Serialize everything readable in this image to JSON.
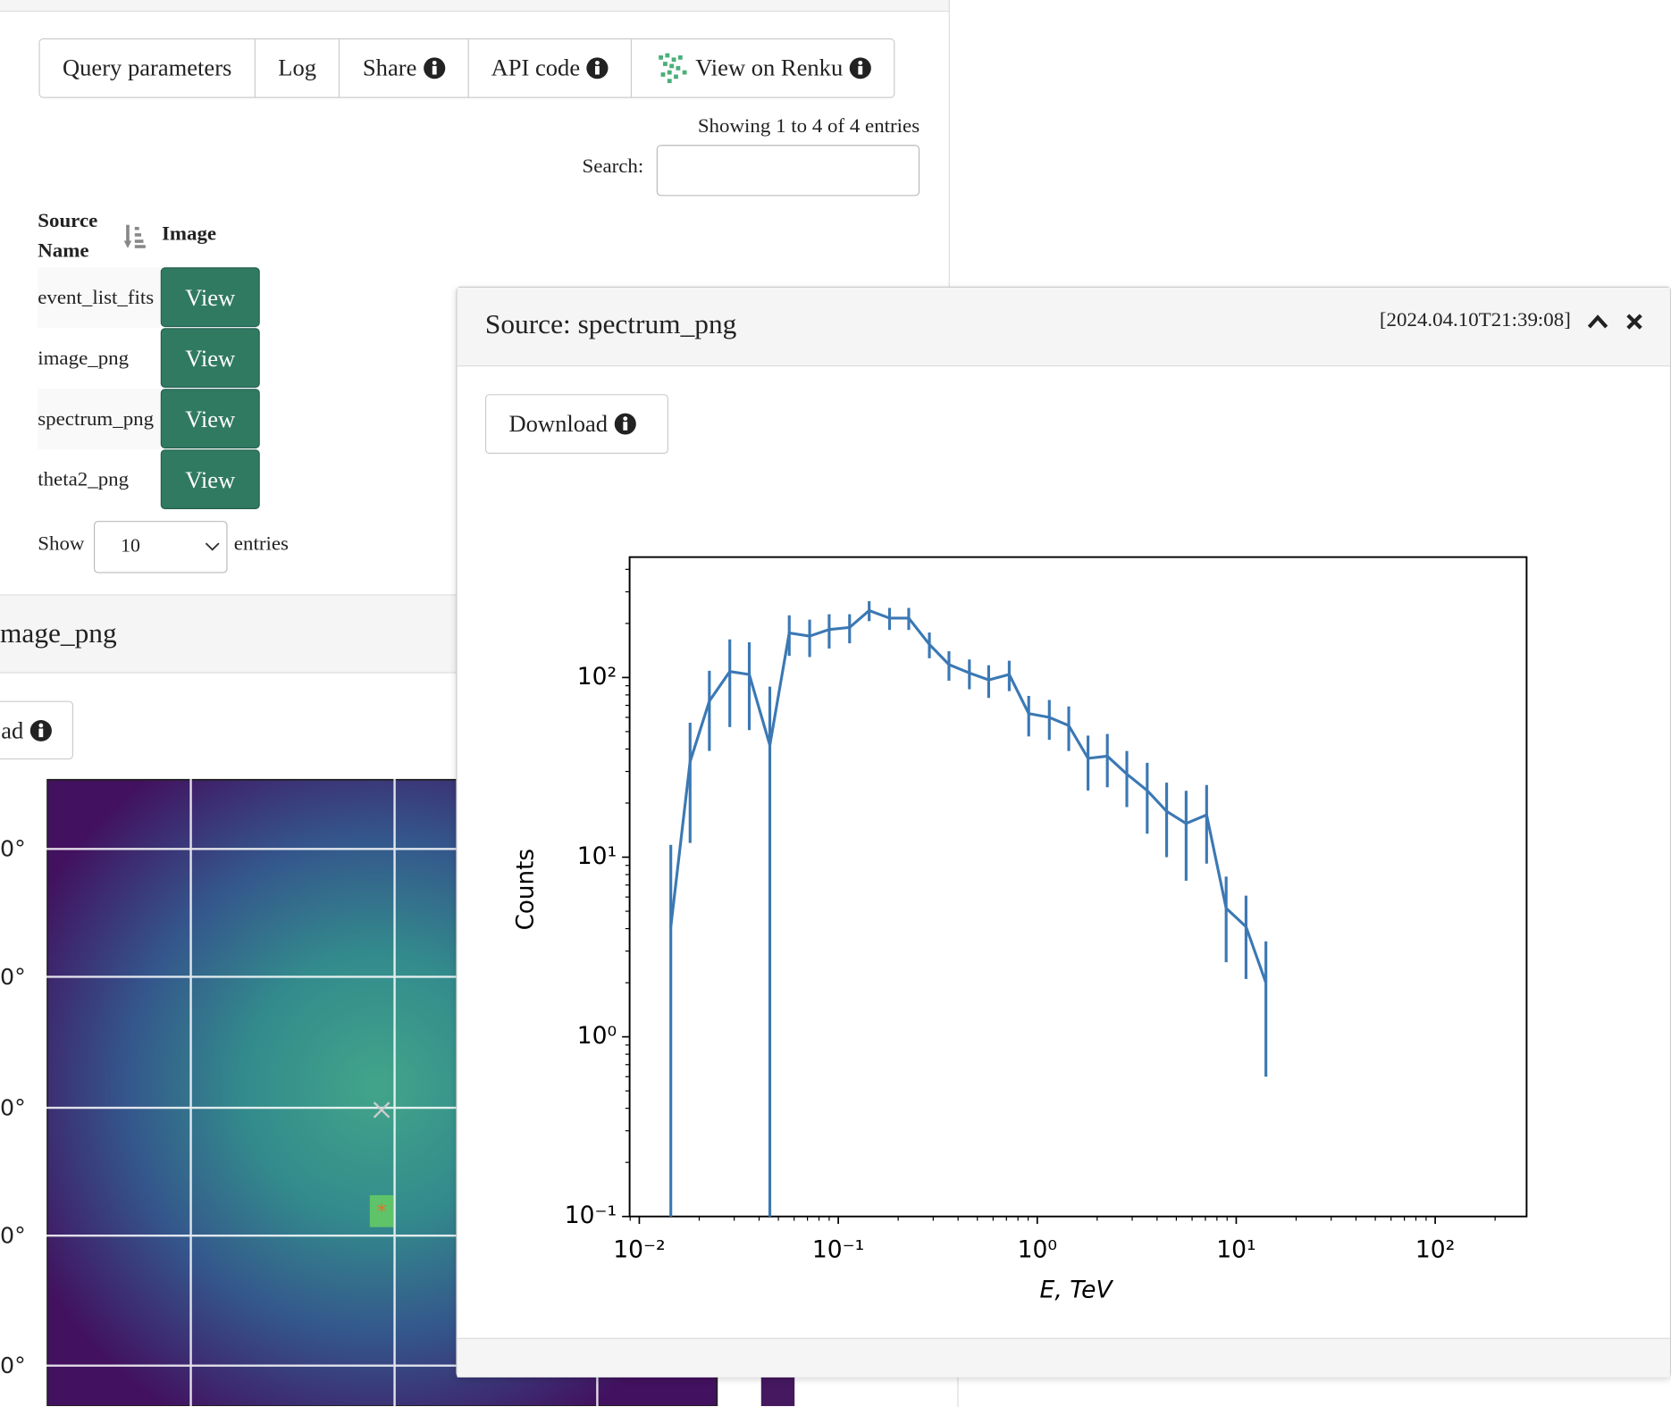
{
  "tabs": [
    "Query parameters",
    "Log",
    "Share",
    "API code",
    "View on Renku"
  ],
  "table": {
    "showing": "Showing 1 to 4 of 4 entries",
    "search_label": "Search:",
    "headers": [
      "Source Name",
      "Image"
    ],
    "rows": [
      [
        "event_list_fits",
        "View"
      ],
      [
        "image_png",
        "View"
      ],
      [
        "spectrum_png",
        "View"
      ],
      [
        "theta2_png",
        "View"
      ]
    ],
    "length": {
      "show": "Show",
      "value": "10",
      "entries": "entries"
    }
  },
  "image_panel": {
    "title": "mage_png",
    "download": "ad",
    "lat_labels": [
      "0°",
      "0°",
      "0°",
      "0°",
      "0°"
    ]
  },
  "panel": {
    "title": "Source: spectrum_png",
    "timestamp": "[2024.04.10T21:39:08]",
    "download": "Download"
  },
  "chart_data": {
    "type": "errorbar",
    "xlabel": "E, TeV",
    "ylabel": "Counts",
    "color": "#3b78b4",
    "log_x": true,
    "log_y": true,
    "x": [
      0.0144,
      0.018,
      0.0225,
      0.0285,
      0.0357,
      0.0453,
      0.0567,
      0.0718,
      0.09,
      0.114,
      0.143,
      0.181,
      0.226,
      0.287,
      0.36,
      0.456,
      0.57,
      0.723,
      0.906,
      1.15,
      1.44,
      1.8,
      2.25,
      2.82,
      3.57,
      4.47,
      5.6,
      7.1,
      8.9,
      11.2,
      14.1
    ],
    "values": [
      4.1,
      34,
      74,
      108,
      104,
      42,
      177,
      170,
      185,
      190,
      236,
      214,
      214,
      153,
      118,
      106,
      97,
      104,
      63,
      60,
      54,
      35.5,
      36.5,
      29,
      23.5,
      18,
      15.4,
      17.2,
      5.2,
      4.1,
      2.0
    ],
    "errors": [
      7.6,
      22,
      35,
      55,
      53,
      47,
      45,
      40,
      40,
      35,
      30,
      30,
      30,
      25,
      22,
      20,
      20,
      20,
      16,
      15,
      15,
      12,
      12,
      10,
      10,
      8,
      8,
      8,
      2.6,
      2,
      1.4
    ],
    "xlim": [
      0.00894,
      288
    ],
    "ylim": [
      0.1,
      468
    ],
    "xticks": [
      {
        "value": 0.01,
        "label": "10⁻²"
      },
      {
        "value": 0.1,
        "label": "10⁻¹"
      },
      {
        "value": 1,
        "label": "10⁰"
      },
      {
        "value": 10,
        "label": "10¹"
      },
      {
        "value": 100,
        "label": "10²"
      }
    ],
    "yticks": [
      {
        "value": 0.1,
        "label": "10⁻¹"
      },
      {
        "value": 1,
        "label": "10⁰"
      },
      {
        "value": 10,
        "label": "10¹"
      },
      {
        "value": 100,
        "label": "10²"
      }
    ]
  }
}
